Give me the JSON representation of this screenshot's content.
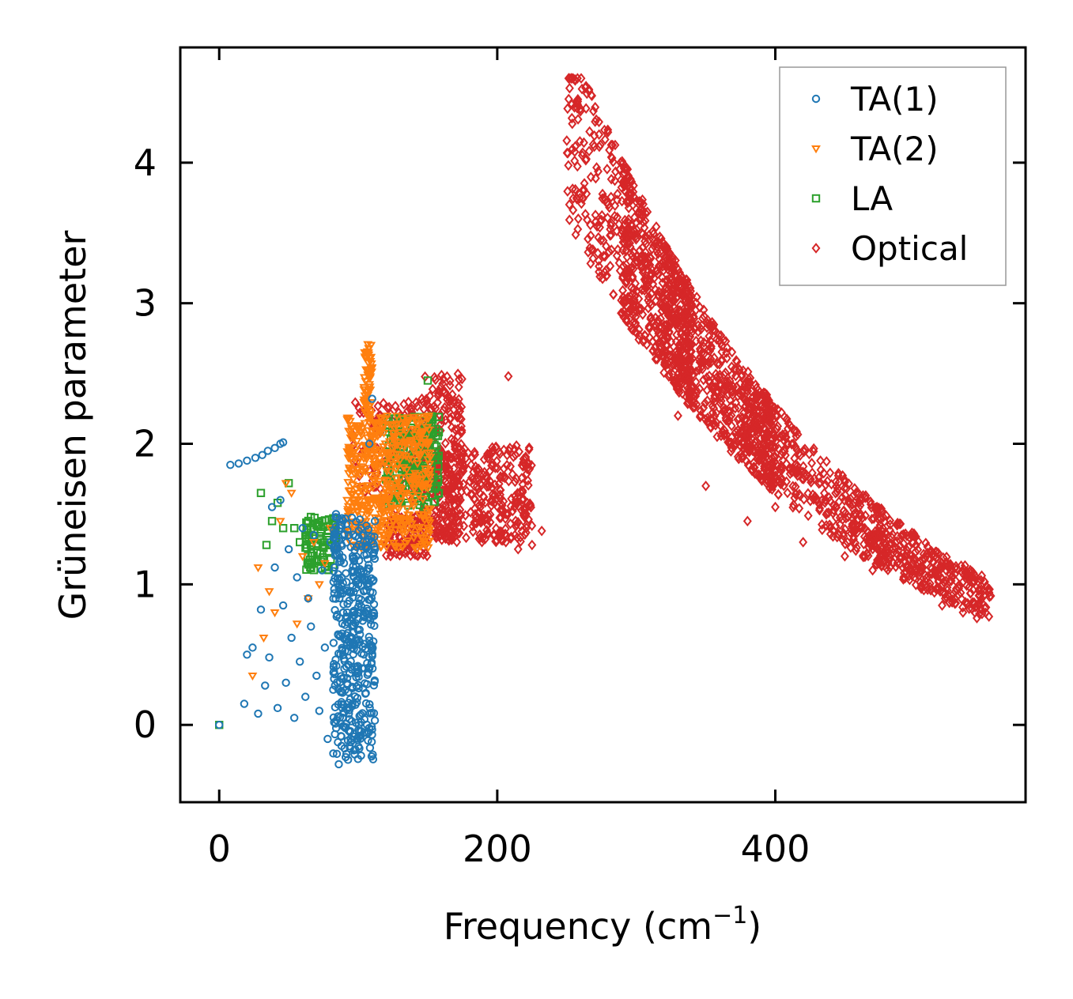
{
  "chart_data": {
    "type": "scatter",
    "title": "",
    "xlabel": "Frequency (cm",
    "xlabel_sup": "−1",
    "xlabel_close": ")",
    "ylabel": "Grüneisen parameter",
    "xlim": [
      -28,
      580
    ],
    "ylim": [
      -0.55,
      4.82
    ],
    "xticks": [
      0,
      200,
      400
    ],
    "yticks": [
      0,
      1,
      2,
      3,
      4
    ],
    "xtick_labels": [
      "0",
      "200",
      "400"
    ],
    "ytick_labels": [
      "0",
      "1",
      "2",
      "3",
      "4"
    ],
    "legend_position": "top-right",
    "series": [
      {
        "name": "TA(1)",
        "marker": "circle",
        "color": "#1f77b4",
        "points": [
          [
            0,
            0
          ],
          [
            8,
            1.85
          ],
          [
            14,
            1.86
          ],
          [
            20,
            1.88
          ],
          [
            26,
            1.9
          ],
          [
            31,
            1.92
          ],
          [
            35,
            1.95
          ],
          [
            40,
            1.97
          ],
          [
            44,
            2.0
          ],
          [
            46,
            2.01
          ],
          [
            18,
            0.15
          ],
          [
            20,
            0.5
          ],
          [
            24,
            0.55
          ],
          [
            28,
            0.08
          ],
          [
            30,
            0.82
          ],
          [
            33,
            0.28
          ],
          [
            36,
            0.48
          ],
          [
            38,
            1.55
          ],
          [
            40,
            1.12
          ],
          [
            42,
            0.12
          ],
          [
            44,
            1.6
          ],
          [
            46,
            0.85
          ],
          [
            48,
            0.3
          ],
          [
            50,
            1.25
          ],
          [
            52,
            0.62
          ],
          [
            54,
            0.05
          ],
          [
            56,
            1.05
          ],
          [
            58,
            0.45
          ],
          [
            60,
            1.4
          ],
          [
            62,
            0.2
          ],
          [
            64,
            0.9
          ],
          [
            66,
            0.7
          ],
          [
            68,
            1.35
          ],
          [
            70,
            0.35
          ],
          [
            72,
            0.1
          ],
          [
            74,
            1.1
          ],
          [
            76,
            0.55
          ],
          [
            78,
            -0.1
          ],
          [
            80,
            1.3
          ],
          [
            82,
            0.25
          ],
          [
            84,
            1.5
          ],
          [
            86,
            -0.28
          ],
          [
            88,
            -0.15
          ],
          [
            90,
            0.4
          ],
          [
            92,
            0.8
          ],
          [
            94,
            -0.05
          ],
          [
            96,
            1.2
          ],
          [
            98,
            0.6
          ],
          [
            100,
            1.0
          ],
          [
            102,
            1.4
          ],
          [
            104,
            0.95
          ],
          [
            106,
            1.3
          ],
          [
            108,
            2.0
          ],
          [
            110,
            2.32
          ],
          [
            112,
            1.45
          ]
        ],
        "regions": [
          [
            82,
            112,
            -0.25,
            1.5,
            420
          ]
        ]
      },
      {
        "name": "TA(2)",
        "marker": "triangle-down",
        "color": "#ff7f0e",
        "points": [
          [
            24,
            0.35
          ],
          [
            28,
            1.12
          ],
          [
            32,
            0.62
          ],
          [
            36,
            0.95
          ],
          [
            40,
            0.8
          ],
          [
            44,
            1.45
          ],
          [
            48,
            1.72
          ],
          [
            52,
            1.65
          ],
          [
            56,
            0.72
          ],
          [
            60,
            1.2
          ],
          [
            64,
            0.9
          ],
          [
            68,
            1.3
          ],
          [
            72,
            1.0
          ],
          [
            76,
            1.15
          ],
          [
            80,
            1.4
          ],
          [
            85,
            1.25
          ],
          [
            88,
            1.45
          ],
          [
            92,
            1.6
          ],
          [
            96,
            1.55
          ],
          [
            100,
            1.7
          ]
        ],
        "regions": [
          [
            92,
            152,
            1.25,
            2.2,
            520
          ],
          [
            104,
            110,
            2.2,
            2.72,
            60
          ]
        ]
      },
      {
        "name": "LA",
        "marker": "square",
        "color": "#2ca02c",
        "points": [
          [
            0,
            0
          ],
          [
            30,
            1.65
          ],
          [
            34,
            1.28
          ],
          [
            38,
            1.45
          ],
          [
            42,
            1.58
          ],
          [
            46,
            1.4
          ],
          [
            50,
            1.72
          ],
          [
            54,
            1.4
          ],
          [
            58,
            1.3
          ],
          [
            62,
            1.35
          ],
          [
            66,
            1.4
          ],
          [
            70,
            1.42
          ],
          [
            74,
            1.45
          ],
          [
            78,
            1.38
          ],
          [
            82,
            1.47
          ],
          [
            120,
            1.75
          ],
          [
            130,
            1.85
          ],
          [
            140,
            1.8
          ],
          [
            150,
            2.45
          ],
          [
            158,
            1.65
          ]
        ],
        "regions": [
          [
            120,
            158,
            1.55,
            2.2,
            200
          ],
          [
            62,
            84,
            1.1,
            1.48,
            80
          ]
        ]
      },
      {
        "name": "Optical",
        "marker": "diamond",
        "color": "#d62728",
        "points": [
          [
            215,
            1.25
          ],
          [
            220,
            1.5
          ],
          [
            225,
            1.28
          ],
          [
            232,
            1.38
          ],
          [
            208,
            2.48
          ],
          [
            282,
            3.57
          ],
          [
            330,
            2.2
          ],
          [
            350,
            1.7
          ],
          [
            380,
            1.45
          ],
          [
            400,
            1.55
          ],
          [
            420,
            1.3
          ],
          [
            450,
            1.2
          ],
          [
            456,
            1.38
          ],
          [
            470,
            1.1
          ],
          [
            490,
            1.2
          ],
          [
            520,
            0.85
          ],
          [
            535,
            0.8
          ],
          [
            545,
            0.76
          ],
          [
            550,
            0.92
          ]
        ],
        "regions": [
          [
            95,
            160,
            1.6,
            2.3,
            150
          ],
          [
            145,
            175,
            1.35,
            2.5,
            200
          ],
          [
            155,
            225,
            1.3,
            2.0,
            350
          ],
          [
            120,
            150,
            1.2,
            1.5,
            120
          ],
          [
            250,
            300,
            3.0,
            4.6,
            220
          ],
          [
            290,
            340,
            2.0,
            3.3,
            450
          ],
          [
            320,
            400,
            1.45,
            2.5,
            550
          ],
          [
            380,
            480,
            1.05,
            1.7,
            400
          ],
          [
            470,
            555,
            0.8,
            1.2,
            300
          ]
        ]
      }
    ]
  }
}
